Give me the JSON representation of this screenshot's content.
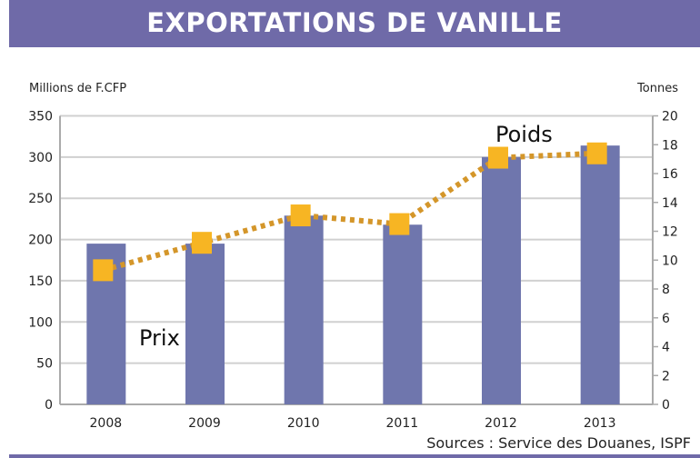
{
  "header": {
    "title": "EXPORTATIONS DE VANILLE"
  },
  "source": "Sources : Service des Douanes, ISPF",
  "chart_data": {
    "type": "bar+line",
    "title": "EXPORTATIONS DE VANILLE",
    "categories": [
      "2008",
      "2009",
      "2010",
      "2011",
      "2012",
      "2013"
    ],
    "ylabel": "Millions de F.CFP",
    "y2label": "Tonnes",
    "ylim": [
      0,
      350
    ],
    "y2lim": [
      0,
      20
    ],
    "yticks": [
      0,
      50,
      100,
      150,
      200,
      250,
      300,
      350
    ],
    "y2ticks": [
      0,
      2,
      4,
      6,
      8,
      10,
      12,
      14,
      16,
      18,
      20
    ],
    "grid": true,
    "series": [
      {
        "name": "Prix",
        "type": "bar",
        "axis": "left",
        "color": "#6f76ad",
        "values": [
          195,
          195,
          229,
          218,
          300,
          314
        ]
      },
      {
        "name": "Poids",
        "type": "line",
        "axis": "right",
        "style": "dotted",
        "line_color": "#d4962a",
        "marker_color": "#f7b523",
        "values": [
          9.3,
          11.2,
          13.1,
          12.5,
          17.1,
          17.4
        ]
      }
    ]
  }
}
